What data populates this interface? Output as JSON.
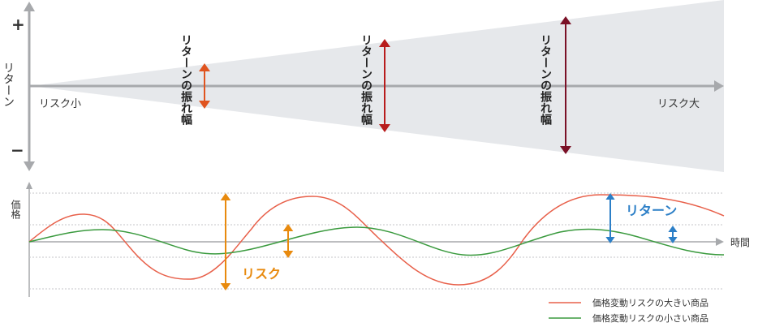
{
  "top_chart": {
    "plus_sign": "+",
    "minus_sign": "−",
    "y_axis_label": "リターン",
    "risk_small_label": "リスク小",
    "risk_large_label": "リスク大",
    "swing_label": "リターンの振れ幅",
    "arrow_colors": [
      "#e0541f",
      "#b81c1c",
      "#7a1026"
    ],
    "wedge_color": "#e6e8eb",
    "axis_color": "#a7a9ac"
  },
  "bottom_chart": {
    "y_axis_label": "価格",
    "x_axis_label": "時間",
    "risk_label": "リスク",
    "return_label": "リターン",
    "risk_color": "#e88a0e",
    "return_color": "#2c7fc7"
  },
  "legend": {
    "items": [
      {
        "label": "価格変動リスクの大きい商品",
        "color": "#e8604a"
      },
      {
        "label": "価格変動リスクの小さい商品",
        "color": "#3a9a3e"
      }
    ]
  }
}
